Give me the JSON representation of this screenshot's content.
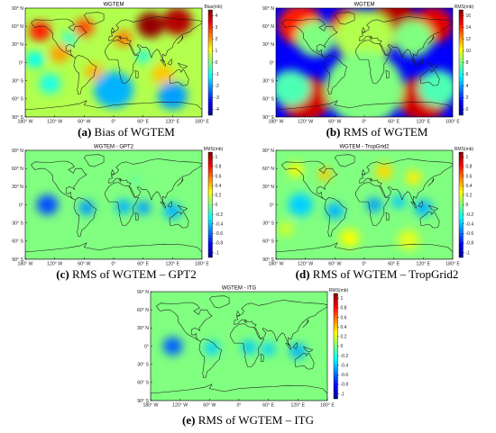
{
  "colormaps": {
    "jet": [
      "#00008f",
      "#0000ff",
      "#0080ff",
      "#00ffff",
      "#80ff80",
      "#ffff00",
      "#ff8000",
      "#ff0000",
      "#800000"
    ],
    "ocean_bg": "#ffffff"
  },
  "axes": {
    "lat_ticks": [
      "90° N",
      "60° N",
      "30° N",
      "0°",
      "30° S",
      "60° S",
      "90° S"
    ],
    "lon_ticks": [
      "180° W",
      "120° W",
      "60° W",
      "0°",
      "60° E",
      "120° E",
      "180° E"
    ]
  },
  "panels": [
    {
      "id": "a",
      "map_title": "WGTEM",
      "colorbar_label": "Bias(mb)",
      "colorbar_ticks": [
        "4",
        "3",
        "2",
        "1",
        "0",
        "-1",
        "-2",
        "-3",
        "-4"
      ],
      "caption_letter": "(a)",
      "caption_text": " Bias of WGTEM",
      "background_level": 0.55,
      "blobs": [
        {
          "lon": 75,
          "lat": 62,
          "r": 28,
          "level": 0.98
        },
        {
          "lon": 130,
          "lat": 68,
          "r": 30,
          "level": 0.95
        },
        {
          "lon": -150,
          "lat": 52,
          "r": 22,
          "level": 0.85
        },
        {
          "lon": -60,
          "lat": 58,
          "r": 20,
          "level": 0.8
        },
        {
          "lon": 20,
          "lat": 40,
          "r": 18,
          "level": 0.75
        },
        {
          "lon": -110,
          "lat": 15,
          "r": 20,
          "level": 0.72
        },
        {
          "lon": -40,
          "lat": -15,
          "r": 18,
          "level": 0.7
        },
        {
          "lon": 100,
          "lat": -20,
          "r": 22,
          "level": 0.68
        },
        {
          "lon": -130,
          "lat": -35,
          "r": 22,
          "level": 0.4
        },
        {
          "lon": 0,
          "lat": -45,
          "r": 40,
          "level": 0.3
        },
        {
          "lon": 120,
          "lat": -55,
          "r": 30,
          "level": 0.28
        },
        {
          "lon": -160,
          "lat": 5,
          "r": 18,
          "level": 0.38
        },
        {
          "lon": 60,
          "lat": 10,
          "r": 14,
          "level": 0.4
        },
        {
          "lon": -90,
          "lat": 40,
          "r": 15,
          "level": 0.42
        }
      ]
    },
    {
      "id": "b",
      "map_title": "WGTEM",
      "colorbar_label": "RMS(mb)",
      "colorbar_ticks": [
        "16",
        "14",
        "12",
        "10",
        "8",
        "6",
        "4",
        "2",
        "0"
      ],
      "caption_letter": "(b)",
      "caption_text": " RMS of WGTEM",
      "background_level": 0.12,
      "blobs": [
        {
          "lon": 60,
          "lat": 65,
          "r": 50,
          "level": 0.95
        },
        {
          "lon": 140,
          "lat": 62,
          "r": 40,
          "level": 0.9
        },
        {
          "lon": -130,
          "lat": 62,
          "r": 45,
          "level": 0.85
        },
        {
          "lon": -30,
          "lat": 60,
          "r": 40,
          "level": 0.88
        },
        {
          "lon": 0,
          "lat": 42,
          "r": 60,
          "level": 0.55
        },
        {
          "lon": 100,
          "lat": 40,
          "r": 40,
          "level": 0.5
        },
        {
          "lon": -100,
          "lat": 40,
          "r": 40,
          "level": 0.5
        },
        {
          "lon": -120,
          "lat": -60,
          "r": 50,
          "level": 0.92
        },
        {
          "lon": 0,
          "lat": -62,
          "r": 50,
          "level": 0.95
        },
        {
          "lon": 120,
          "lat": -60,
          "r": 50,
          "level": 0.92
        },
        {
          "lon": 0,
          "lat": -42,
          "r": 80,
          "level": 0.5
        },
        {
          "lon": 150,
          "lat": -42,
          "r": 40,
          "level": 0.45
        },
        {
          "lon": -150,
          "lat": -42,
          "r": 40,
          "level": 0.45
        }
      ]
    },
    {
      "id": "c",
      "map_title": "WGTEM - GPT2",
      "colorbar_label": "RMS(mb)",
      "colorbar_ticks": [
        "1",
        "0.8",
        "0.6",
        "0.4",
        "0.2",
        "0",
        "-0.2",
        "-0.4",
        "-0.6",
        "-0.8",
        "-1"
      ],
      "caption_letter": "(c)",
      "caption_text": " RMS of WGTEM – GPT2",
      "background_level": 0.5,
      "blobs": [
        {
          "lon": -135,
          "lat": 0,
          "r": 22,
          "level": 0.2
        },
        {
          "lon": -55,
          "lat": -5,
          "r": 16,
          "level": 0.27
        },
        {
          "lon": 20,
          "lat": -3,
          "r": 16,
          "level": 0.3
        },
        {
          "lon": 60,
          "lat": -5,
          "r": 15,
          "level": 0.28
        },
        {
          "lon": 120,
          "lat": -10,
          "r": 18,
          "level": 0.3
        },
        {
          "lon": 45,
          "lat": 40,
          "r": 8,
          "level": 0.45
        }
      ]
    },
    {
      "id": "d",
      "map_title": "WGTEM - TropGrid2",
      "colorbar_label": "RMS(mb)",
      "colorbar_ticks": [
        "1",
        "0.8",
        "0.6",
        "0.4",
        "0.2",
        "0",
        "-0.2",
        "-0.4",
        "-0.6",
        "-0.8",
        "-1"
      ],
      "caption_letter": "(d)",
      "caption_text": " RMS of WGTEM – TropGrid2",
      "background_level": 0.5,
      "blobs": [
        {
          "lon": -130,
          "lat": 0,
          "r": 25,
          "level": 0.33
        },
        {
          "lon": -60,
          "lat": -10,
          "r": 18,
          "level": 0.3
        },
        {
          "lon": 20,
          "lat": 0,
          "r": 16,
          "level": 0.28
        },
        {
          "lon": 70,
          "lat": 5,
          "r": 14,
          "level": 0.32
        },
        {
          "lon": 120,
          "lat": -5,
          "r": 18,
          "level": 0.3
        },
        {
          "lon": -80,
          "lat": 50,
          "r": 14,
          "level": 0.68
        },
        {
          "lon": 40,
          "lat": 55,
          "r": 18,
          "level": 0.66
        },
        {
          "lon": 100,
          "lat": 45,
          "r": 16,
          "level": 0.64
        },
        {
          "lon": -140,
          "lat": 58,
          "r": 16,
          "level": 0.62
        },
        {
          "lon": -30,
          "lat": -55,
          "r": 20,
          "level": 0.62
        },
        {
          "lon": 90,
          "lat": -58,
          "r": 22,
          "level": 0.6
        },
        {
          "lon": -160,
          "lat": -40,
          "r": 16,
          "level": 0.58
        }
      ]
    },
    {
      "id": "e",
      "map_title": "WGTEM - ITG",
      "colorbar_label": "RMS(mb)",
      "colorbar_ticks": [
        "1",
        "0.8",
        "0.6",
        "0.4",
        "0.2",
        "0",
        "-0.2",
        "-0.4",
        "-0.6",
        "-0.8",
        "-1"
      ],
      "caption_letter": "(e)",
      "caption_text": " RMS of WGTEM – ITG",
      "background_level": 0.5,
      "blobs": [
        {
          "lon": -135,
          "lat": 0,
          "r": 20,
          "level": 0.22
        },
        {
          "lon": -55,
          "lat": -3,
          "r": 15,
          "level": 0.33
        },
        {
          "lon": 20,
          "lat": -2,
          "r": 15,
          "level": 0.32
        },
        {
          "lon": 60,
          "lat": -5,
          "r": 14,
          "level": 0.33
        },
        {
          "lon": 120,
          "lat": -8,
          "r": 17,
          "level": 0.3
        }
      ]
    }
  ]
}
